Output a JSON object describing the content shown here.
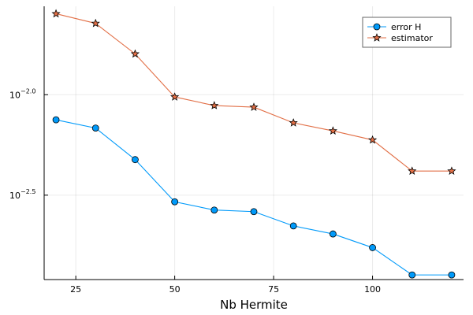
{
  "chart_data": {
    "type": "line",
    "xlabel": "Nb Hermite",
    "ylabel": "",
    "title": "",
    "y_scale": "log10",
    "xlim": [
      17,
      123
    ],
    "ylim_log10": [
      -2.92,
      -1.56
    ],
    "grid": true,
    "legend_position": "top-right",
    "x_ticks": [
      25,
      50,
      75,
      100
    ],
    "x_tick_labels": [
      "25",
      "50",
      "75",
      "100"
    ],
    "y_ticks_log10": [
      -2.0,
      -2.5
    ],
    "y_tick_labels": [
      {
        "base": "10",
        "exp": "−2.0"
      },
      {
        "base": "10",
        "exp": "−2.5"
      }
    ],
    "x": [
      20,
      30,
      40,
      50,
      60,
      70,
      80,
      90,
      100,
      110,
      120
    ],
    "series": [
      {
        "name": "error H",
        "color": "#009AFA",
        "marker": "circle",
        "values_log10": [
          -2.125,
          -2.166,
          -2.323,
          -2.533,
          -2.574,
          -2.582,
          -2.653,
          -2.693,
          -2.761,
          -2.897,
          -2.897
        ]
      },
      {
        "name": "estimator",
        "color": "#E26F46",
        "marker": "star",
        "values_log10": [
          -1.597,
          -1.645,
          -1.797,
          -2.011,
          -2.054,
          -2.062,
          -2.14,
          -2.18,
          -2.225,
          -2.38,
          -2.38
        ]
      }
    ]
  }
}
